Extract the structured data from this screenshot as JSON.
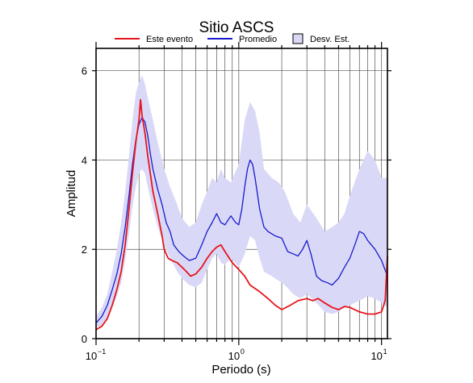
{
  "chart_data": {
    "type": "line",
    "title": "Sitio ASCS",
    "xlabel": "Periodo (s)",
    "ylabel": "Amplitud",
    "x_scale": "log",
    "xlim": [
      0.1,
      11
    ],
    "ylim": [
      0,
      6.5
    ],
    "x_ticks": [
      {
        "value": 0.1,
        "base": "10",
        "exp": "−1"
      },
      {
        "value": 1,
        "base": "10",
        "exp": "0"
      },
      {
        "value": 10,
        "base": "10",
        "exp": "1"
      }
    ],
    "y_ticks": [
      0,
      2,
      4,
      6
    ],
    "grid": true,
    "legend_position": "top",
    "legend": [
      {
        "label": "Este evento",
        "kind": "line",
        "color": "#e8141c"
      },
      {
        "label": "Promedio",
        "kind": "line",
        "color": "#1a1acc"
      },
      {
        "label": "Desv. Est.",
        "kind": "band",
        "color": "#d9d9f7"
      }
    ],
    "series": [
      {
        "name": "Este evento",
        "color": "#e8141c",
        "points": [
          [
            0.1,
            0.2
          ],
          [
            0.11,
            0.28
          ],
          [
            0.12,
            0.45
          ],
          [
            0.13,
            0.75
          ],
          [
            0.14,
            1.1
          ],
          [
            0.15,
            1.5
          ],
          [
            0.16,
            2.1
          ],
          [
            0.17,
            2.9
          ],
          [
            0.18,
            3.7
          ],
          [
            0.19,
            4.4
          ],
          [
            0.2,
            4.9
          ],
          [
            0.205,
            5.35
          ],
          [
            0.21,
            5.0
          ],
          [
            0.22,
            4.6
          ],
          [
            0.23,
            4.1
          ],
          [
            0.24,
            3.7
          ],
          [
            0.25,
            3.3
          ],
          [
            0.27,
            2.8
          ],
          [
            0.29,
            2.3
          ],
          [
            0.3,
            2.0
          ],
          [
            0.32,
            1.8
          ],
          [
            0.34,
            1.75
          ],
          [
            0.37,
            1.7
          ],
          [
            0.4,
            1.6
          ],
          [
            0.43,
            1.5
          ],
          [
            0.46,
            1.4
          ],
          [
            0.5,
            1.45
          ],
          [
            0.55,
            1.6
          ],
          [
            0.6,
            1.8
          ],
          [
            0.65,
            1.95
          ],
          [
            0.7,
            2.05
          ],
          [
            0.75,
            2.1
          ],
          [
            0.8,
            1.95
          ],
          [
            0.9,
            1.7
          ],
          [
            1.0,
            1.55
          ],
          [
            1.1,
            1.4
          ],
          [
            1.2,
            1.2
          ],
          [
            1.4,
            1.05
          ],
          [
            1.6,
            0.9
          ],
          [
            1.8,
            0.75
          ],
          [
            2.0,
            0.65
          ],
          [
            2.3,
            0.75
          ],
          [
            2.6,
            0.85
          ],
          [
            3.0,
            0.9
          ],
          [
            3.3,
            0.85
          ],
          [
            3.6,
            0.9
          ],
          [
            4.0,
            0.8
          ],
          [
            4.5,
            0.7
          ],
          [
            5.0,
            0.65
          ],
          [
            5.5,
            0.72
          ],
          [
            6.0,
            0.7
          ],
          [
            7.0,
            0.6
          ],
          [
            8.0,
            0.55
          ],
          [
            9.0,
            0.55
          ],
          [
            10.0,
            0.6
          ],
          [
            10.6,
            0.85
          ],
          [
            11.0,
            1.85
          ]
        ]
      },
      {
        "name": "Promedio",
        "color": "#1a1acc",
        "points": [
          [
            0.1,
            0.35
          ],
          [
            0.11,
            0.5
          ],
          [
            0.12,
            0.75
          ],
          [
            0.13,
            1.1
          ],
          [
            0.14,
            1.45
          ],
          [
            0.15,
            1.9
          ],
          [
            0.16,
            2.5
          ],
          [
            0.17,
            3.2
          ],
          [
            0.18,
            3.9
          ],
          [
            0.19,
            4.45
          ],
          [
            0.2,
            4.8
          ],
          [
            0.21,
            4.95
          ],
          [
            0.22,
            4.85
          ],
          [
            0.23,
            4.55
          ],
          [
            0.24,
            4.15
          ],
          [
            0.25,
            3.8
          ],
          [
            0.27,
            3.35
          ],
          [
            0.29,
            3.0
          ],
          [
            0.31,
            2.6
          ],
          [
            0.33,
            2.4
          ],
          [
            0.35,
            2.1
          ],
          [
            0.38,
            1.95
          ],
          [
            0.41,
            1.85
          ],
          [
            0.45,
            1.75
          ],
          [
            0.5,
            1.8
          ],
          [
            0.55,
            2.1
          ],
          [
            0.6,
            2.4
          ],
          [
            0.65,
            2.6
          ],
          [
            0.7,
            2.8
          ],
          [
            0.75,
            2.6
          ],
          [
            0.8,
            2.55
          ],
          [
            0.88,
            2.75
          ],
          [
            0.95,
            2.6
          ],
          [
            1.0,
            2.55
          ],
          [
            1.05,
            2.9
          ],
          [
            1.1,
            3.4
          ],
          [
            1.15,
            3.8
          ],
          [
            1.2,
            4.0
          ],
          [
            1.25,
            3.9
          ],
          [
            1.3,
            3.6
          ],
          [
            1.4,
            2.9
          ],
          [
            1.5,
            2.5
          ],
          [
            1.6,
            2.4
          ],
          [
            1.8,
            2.3
          ],
          [
            2.0,
            2.25
          ],
          [
            2.2,
            1.95
          ],
          [
            2.4,
            1.9
          ],
          [
            2.6,
            1.85
          ],
          [
            2.8,
            2.0
          ],
          [
            3.0,
            2.2
          ],
          [
            3.2,
            1.9
          ],
          [
            3.5,
            1.4
          ],
          [
            3.8,
            1.3
          ],
          [
            4.2,
            1.25
          ],
          [
            4.5,
            1.2
          ],
          [
            5.0,
            1.35
          ],
          [
            5.5,
            1.6
          ],
          [
            6.0,
            1.8
          ],
          [
            6.5,
            2.1
          ],
          [
            7.0,
            2.4
          ],
          [
            7.5,
            2.35
          ],
          [
            8.0,
            2.2
          ],
          [
            9.0,
            2.0
          ],
          [
            10.0,
            1.75
          ],
          [
            11.0,
            1.4
          ]
        ]
      }
    ],
    "band": {
      "name": "Desv. Est.",
      "color": "#d9d9f7",
      "x": [
        0.1,
        0.11,
        0.12,
        0.13,
        0.14,
        0.15,
        0.16,
        0.17,
        0.18,
        0.19,
        0.2,
        0.21,
        0.22,
        0.23,
        0.25,
        0.27,
        0.3,
        0.33,
        0.37,
        0.4,
        0.45,
        0.5,
        0.55,
        0.6,
        0.65,
        0.7,
        0.75,
        0.8,
        0.88,
        1.0,
        1.1,
        1.2,
        1.3,
        1.4,
        1.5,
        1.7,
        1.9,
        2.1,
        2.4,
        2.7,
        3.0,
        3.5,
        4.0,
        4.5,
        5.0,
        5.5,
        6.0,
        7.0,
        8.0,
        9.0,
        10.0,
        11.0
      ],
      "upper": [
        0.5,
        0.7,
        1.0,
        1.5,
        2.0,
        2.6,
        3.3,
        4.1,
        4.9,
        5.5,
        5.75,
        5.9,
        5.7,
        5.4,
        4.9,
        4.4,
        3.8,
        3.4,
        3.0,
        2.7,
        2.5,
        2.6,
        3.0,
        3.3,
        3.6,
        3.5,
        3.8,
        3.6,
        3.5,
        3.9,
        4.9,
        5.3,
        5.1,
        4.6,
        3.8,
        3.6,
        3.5,
        3.3,
        2.8,
        2.6,
        3.0,
        2.7,
        2.4,
        2.5,
        2.6,
        2.8,
        3.2,
        3.8,
        4.2,
        4.0,
        3.6,
        3.6
      ],
      "lower": [
        0.25,
        0.3,
        0.45,
        0.7,
        0.95,
        1.25,
        1.75,
        2.35,
        2.95,
        3.4,
        3.7,
        3.8,
        3.7,
        3.4,
        2.9,
        2.5,
        2.1,
        1.8,
        1.5,
        1.35,
        1.2,
        1.15,
        1.25,
        1.55,
        1.8,
        1.9,
        1.7,
        1.65,
        1.8,
        1.6,
        1.9,
        2.3,
        2.2,
        1.8,
        1.5,
        1.4,
        1.3,
        1.2,
        1.0,
        0.9,
        1.0,
        0.8,
        0.6,
        0.55,
        0.6,
        0.7,
        0.75,
        0.85,
        0.95,
        0.9,
        0.8,
        0.7
      ]
    }
  }
}
